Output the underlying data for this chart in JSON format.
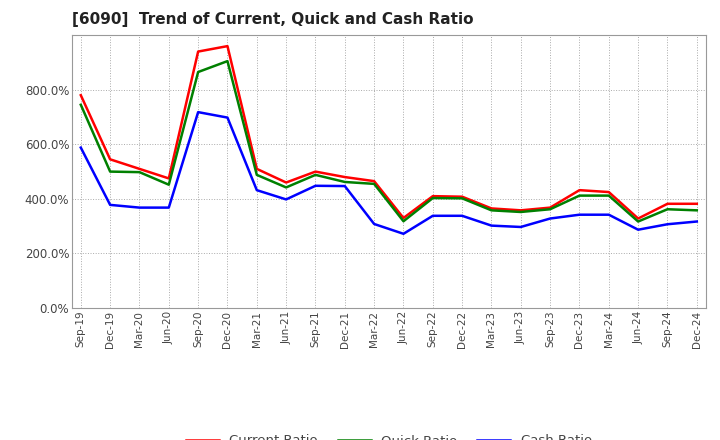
{
  "title": "[6090]  Trend of Current, Quick and Cash Ratio",
  "x_labels": [
    "Sep-19",
    "Dec-19",
    "Mar-20",
    "Jun-20",
    "Sep-20",
    "Dec-20",
    "Mar-21",
    "Jun-21",
    "Sep-21",
    "Dec-21",
    "Mar-22",
    "Jun-22",
    "Sep-22",
    "Dec-22",
    "Mar-23",
    "Jun-23",
    "Sep-23",
    "Dec-23",
    "Mar-24",
    "Jun-24",
    "Sep-24",
    "Dec-24"
  ],
  "current_ratio": [
    780,
    545,
    510,
    475,
    940,
    960,
    510,
    460,
    500,
    480,
    465,
    330,
    410,
    408,
    365,
    358,
    368,
    432,
    425,
    328,
    382,
    382
  ],
  "quick_ratio": [
    745,
    500,
    498,
    452,
    865,
    905,
    488,
    442,
    488,
    462,
    455,
    318,
    403,
    402,
    358,
    352,
    362,
    412,
    412,
    317,
    362,
    358
  ],
  "cash_ratio": [
    588,
    378,
    368,
    368,
    718,
    698,
    432,
    398,
    448,
    447,
    308,
    272,
    338,
    338,
    302,
    297,
    328,
    342,
    342,
    287,
    307,
    317
  ],
  "current_color": "#ff0000",
  "quick_color": "#008000",
  "cash_color": "#0000ff",
  "ylim": [
    0,
    1000
  ],
  "yticks": [
    0,
    200,
    400,
    600,
    800
  ],
  "background_color": "#ffffff",
  "grid_color": "#aaaaaa",
  "line_width": 1.8
}
